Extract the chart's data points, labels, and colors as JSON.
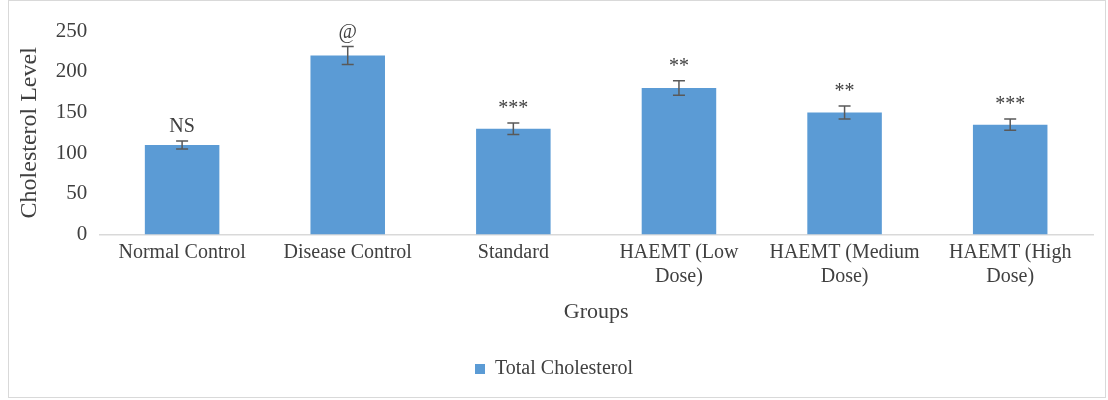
{
  "chart_data": {
    "type": "bar",
    "xlabel": "Groups",
    "ylabel": "Cholesterol Level",
    "categories": [
      "Normal Control",
      "Disease Control",
      "Standard",
      "HAEMT (Low Dose)",
      "HAEMT (Medium Dose)",
      "HAEMT (High Dose)"
    ],
    "series": [
      {
        "name": "Total Cholesterol",
        "color": "#5b9bd5",
        "values": [
          110,
          220,
          130,
          180,
          150,
          135
        ],
        "errors": [
          5,
          11,
          7,
          9,
          8,
          7
        ]
      }
    ],
    "ylim": [
      0,
      250
    ],
    "yticks": [
      0,
      50,
      100,
      150,
      200,
      250
    ],
    "grid": false,
    "legend": "bottom",
    "annotations": [
      {
        "text": "NS",
        "x": "Normal Control",
        "y": 115
      },
      {
        "text": "@",
        "x": "Disease Control",
        "y": 231
      },
      {
        "text": "***",
        "x": "Standard",
        "y": 137
      },
      {
        "text": "**",
        "x": "HAEMT (Low Dose)",
        "y": 189
      },
      {
        "text": "**",
        "x": "HAEMT (Medium Dose)",
        "y": 158
      },
      {
        "text": "***",
        "x": "HAEMT (High Dose)",
        "y": 142
      }
    ]
  }
}
